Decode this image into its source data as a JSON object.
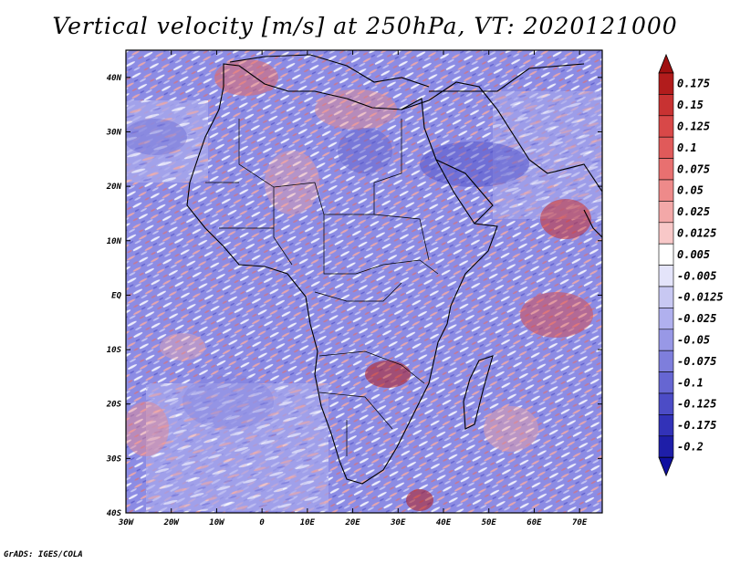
{
  "title": "Vertical velocity [m/s] at 250hPa, VT: 2020121000",
  "credit": "GrADS: IGES/COLA",
  "map": {
    "lon_labels": [
      "30W",
      "20W",
      "10W",
      "0",
      "10E",
      "20E",
      "30E",
      "40E",
      "50E",
      "60E",
      "70E"
    ],
    "lat_labels": [
      "40N",
      "30N",
      "20N",
      "10N",
      "EQ",
      "10S",
      "20S",
      "30S",
      "40S"
    ],
    "lon_range": [
      -30,
      75
    ],
    "lat_range": [
      -40,
      45
    ]
  },
  "colorbar": {
    "levels": [
      "0.175",
      "0.15",
      "0.125",
      "0.1",
      "0.075",
      "0.05",
      "0.025",
      "0.0125",
      "0.005",
      "-0.005",
      "-0.0125",
      "-0.025",
      "-0.05",
      "-0.075",
      "-0.1",
      "-0.125",
      "-0.175",
      "-0.2"
    ],
    "colors": [
      "#b21c1c",
      "#c83232",
      "#d84848",
      "#e05a5a",
      "#e87070",
      "#ee8a8a",
      "#f3a8a8",
      "#f8c8c8",
      "#ffffff",
      "#e4e4fa",
      "#c8c8f2",
      "#b0b0ee",
      "#9898e6",
      "#7e7edc",
      "#6666d2",
      "#4c4cc6",
      "#3232b8",
      "#1e1ea8"
    ],
    "top_arrow_color": "#a01010",
    "bottom_arrow_color": "#1010a0"
  }
}
